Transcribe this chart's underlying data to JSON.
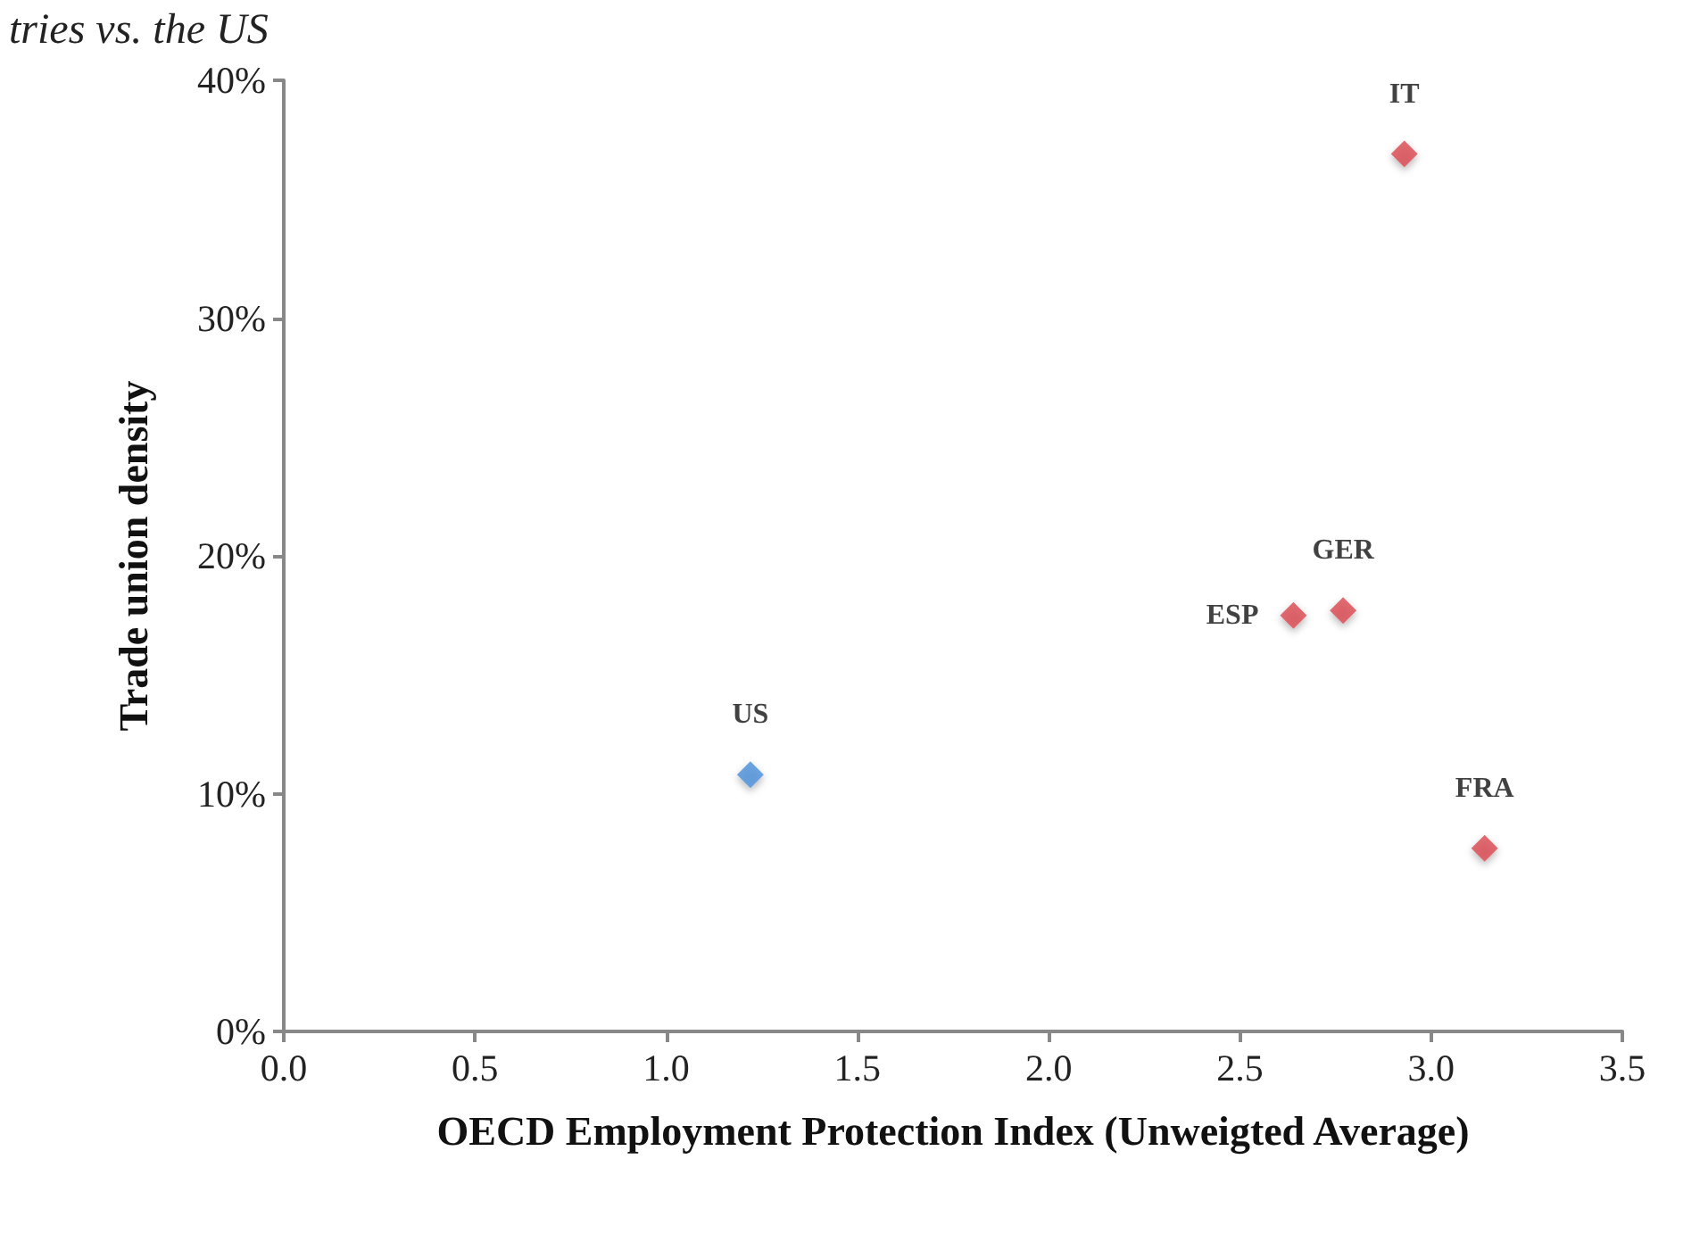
{
  "chart_data": {
    "type": "scatter",
    "title": "tries vs. the US",
    "xlabel": "OECD Employment Protection Index (Unweigted Average)",
    "ylabel": "Trade union density",
    "series": [
      {
        "name": "US",
        "color": "#4a8fd9",
        "x": [
          1.22
        ],
        "values": [
          10.8
        ]
      },
      {
        "name": "ESP",
        "color": "#d9484f",
        "x": [
          2.64
        ],
        "values": [
          17.5
        ]
      },
      {
        "name": "GER",
        "color": "#d9484f",
        "x": [
          2.77
        ],
        "values": [
          17.7
        ]
      },
      {
        "name": "IT",
        "color": "#d9484f",
        "x": [
          2.93
        ],
        "values": [
          36.9
        ]
      },
      {
        "name": "FRA",
        "color": "#d9484f",
        "x": [
          3.14
        ],
        "values": [
          7.7
        ]
      }
    ],
    "xlim": [
      0,
      3.5
    ],
    "xticks": [
      {
        "value": 0,
        "label": "0.0"
      },
      0.5,
      {
        "value": 1,
        "label": "1.0"
      },
      1.5,
      {
        "value": 2,
        "label": "2.0"
      },
      2.5,
      {
        "value": 3,
        "label": "3.0"
      },
      3.5
    ],
    "ylim": [
      0,
      40
    ],
    "yticks": [
      {
        "value": 0,
        "label": "0%"
      },
      {
        "value": 10,
        "label": "10%"
      },
      {
        "value": 20,
        "label": "20%"
      },
      {
        "value": 30,
        "label": "30%"
      },
      {
        "value": 40,
        "label": "40%"
      }
    ],
    "grid": false,
    "legend": false,
    "marker": "diamond"
  }
}
